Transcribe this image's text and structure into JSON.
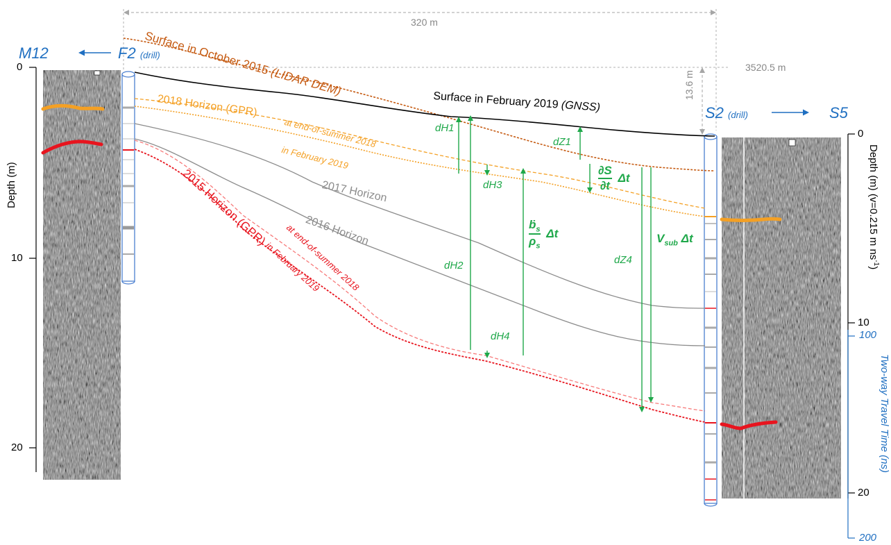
{
  "top": {
    "width_label": "320 m",
    "elevation_label": "3520.5 m",
    "depth_offset_label": "13.6 m"
  },
  "left": {
    "site_main": "M12",
    "drill_main": "F2",
    "drill_sub": "(drill)",
    "axis_label": "Depth (m)",
    "ticks": [
      "0",
      "10",
      "20"
    ]
  },
  "right": {
    "site_drill": "S2",
    "drill_sub": "(drill)",
    "site_far": "S5",
    "depth_axis_label": "Depth (m) (v=0.215 m ns",
    "depth_axis_sup": "-1",
    "depth_axis_close": ")",
    "depth_ticks": [
      "0",
      "10",
      "20"
    ],
    "twt_label": "Two-way Travel Time (ns)",
    "twt_ticks": [
      "100",
      "200"
    ]
  },
  "surfaces": {
    "lidar_prefix": "Surface in October 2015 ",
    "lidar_suffix": "(LIDAR DEM)",
    "gnss_prefix": "Surface in February 2019 ",
    "gnss_suffix": "(GNSS)"
  },
  "horizons": {
    "h2018": "2018 Horizon (GPR)",
    "h2018_summer": "at end-of-summer 2018",
    "h2018_feb": "in February 2019",
    "h2017": "2017 Horizon",
    "h2016": "2016 Horizon",
    "h2015": "2015 Horizon (GPR)",
    "h2015_summer": "at end-of-summer 2018",
    "h2015_feb": "in February 2019"
  },
  "measures": {
    "dH1": "dH1",
    "dH2": "dH2",
    "dH3": "dH3",
    "dH4": "dH4",
    "dZ1": "dZ1",
    "dZ4": "dZ4",
    "ds_num": "∂S",
    "ds_den": "∂t",
    "ds_dt": "Δt",
    "b_num": "ḃ",
    "b_num_sub": "s",
    "b_den": "ρ",
    "b_den_sub": "s",
    "b_dt": "Δt",
    "v_main": "V",
    "v_sub": "sub",
    "v_dt": "Δt"
  },
  "colors": {
    "blue": "#1f6fc1",
    "green": "#1fa84a",
    "lidar": "#c55a11",
    "orange": "#f4a024",
    "red": "#e8141e",
    "gray": "#8c8c8c"
  }
}
